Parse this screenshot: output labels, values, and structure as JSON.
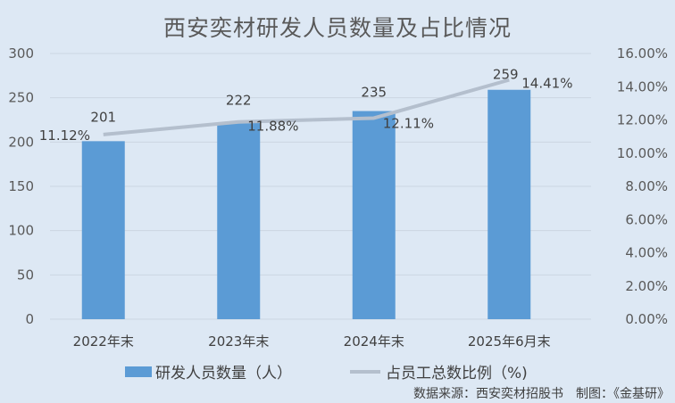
{
  "title": "西安奕材研发人员数量及占比情况",
  "legend": {
    "bar_label": "研发人员数量（人）",
    "line_label": "占员工总数比例（%)"
  },
  "source": "数据来源：西安奕材招股书　制图：《金基研》",
  "colors": {
    "bar": "#5b9bd5",
    "line": "#b4bfcd",
    "background": "#dde8f4",
    "grid": "#ccd6e2"
  },
  "chart_data": {
    "type": "bar",
    "title": "西安奕材研发人员数量及占比情况",
    "categories": [
      "2022年末",
      "2023年末",
      "2024年末",
      "2025年6月末"
    ],
    "series": [
      {
        "name": "研发人员数量（人）",
        "type": "bar",
        "axis": "left",
        "values": [
          201,
          222,
          235,
          259
        ],
        "labels": [
          "201",
          "222",
          "235",
          "259"
        ]
      },
      {
        "name": "占员工总数比例（%)",
        "type": "line",
        "axis": "right",
        "values": [
          11.12,
          11.88,
          12.11,
          14.41
        ],
        "labels": [
          "11.12%",
          "11.88%",
          "12.11%",
          "14.41%"
        ]
      }
    ],
    "y_left": {
      "min": 0,
      "max": 300,
      "ticks": [
        "0",
        "50",
        "100",
        "150",
        "200",
        "250",
        "300"
      ]
    },
    "y_right": {
      "min": 0,
      "max": 16,
      "ticks": [
        "0.00%",
        "2.00%",
        "4.00%",
        "6.00%",
        "8.00%",
        "10.00%",
        "12.00%",
        "14.00%",
        "16.00%"
      ]
    },
    "grid": true,
    "legend_position": "bottom"
  }
}
